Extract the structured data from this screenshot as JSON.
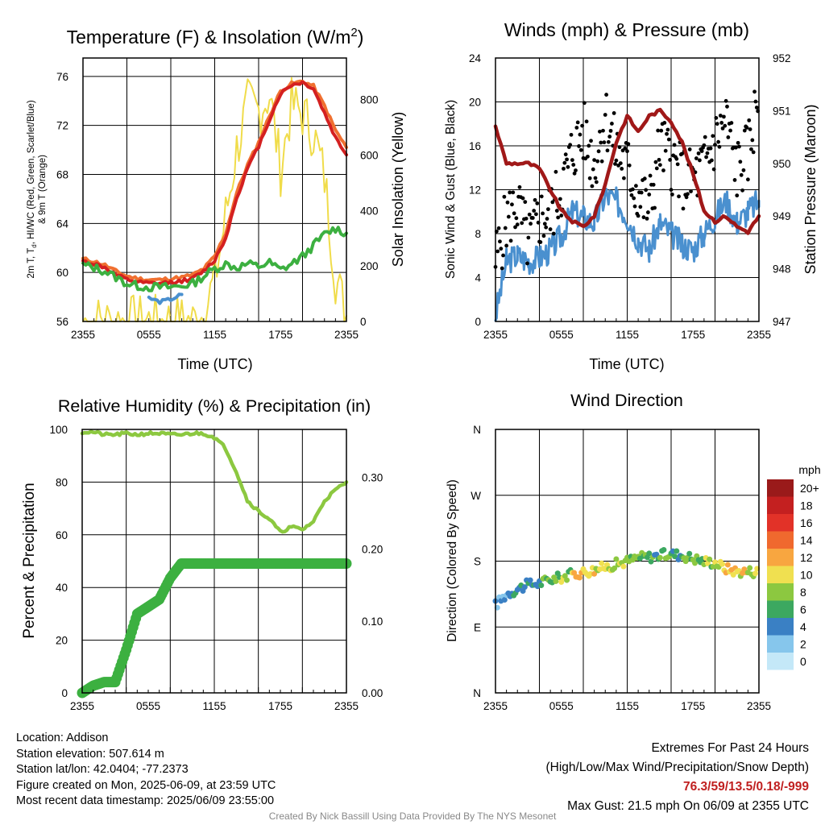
{
  "panels": {
    "temp": {
      "title": "Temperature (F) & Insolation (W/m",
      "title_sup": "2",
      "title_end": ")",
      "ylabel1": "2m T, T",
      "ylabel1_sub": "d",
      "ylabel1_rest": ", HI/WC (Red, Green, Scarlet/Blue)",
      "ylabel2": "& 9m T (Orange)",
      "y2label": "Solar Insolation (Yellow)",
      "xlabel": "Time (UTC)"
    },
    "wind": {
      "title": "Winds (mph) & Pressure (mb)",
      "ylabel": "Sonic Wind & Gust (Blue, Black)",
      "y2label": "Station Pressure (Maroon)",
      "xlabel": "Time (UTC)"
    },
    "rh": {
      "title": "Relative Humidity (%) & Precipitation (in)",
      "ylabel": "Percent & Precipitation"
    },
    "dir": {
      "title": "Wind Direction",
      "ylabel": "Direction (Colored By Speed)",
      "legend_title": "mph"
    }
  },
  "chart_data": [
    {
      "type": "line",
      "title": "Temperature (F) & Insolation (W/m2)",
      "xlabel": "Time (UTC)",
      "ylabel": "2m T, Td, HI/WC (Red, Green, Scarlet/Blue) & 9m T (Orange)",
      "y2label": "Solar Insolation (Yellow)",
      "x_ticks": [
        "2355",
        "0555",
        "1155",
        "1755",
        "2355"
      ],
      "ylim": [
        56,
        77.5
      ],
      "y_ticks": [
        56,
        60,
        64,
        68,
        72,
        76
      ],
      "y2lim": [
        0,
        950
      ],
      "y2_ticks": [
        0,
        200,
        400,
        600,
        800
      ],
      "x_hours": [
        0,
        1,
        2,
        3,
        4,
        5,
        6,
        7,
        8,
        9,
        10,
        11,
        12,
        13,
        14,
        15,
        16,
        17,
        18,
        19,
        20,
        21,
        22,
        23,
        24
      ],
      "series": [
        {
          "color": "#f07030",
          "values": [
            61.1,
            60.9,
            60.6,
            60.1,
            59.7,
            59.5,
            59.4,
            59.4,
            59.5,
            59.6,
            59.8,
            60.3,
            61.3,
            63.2,
            66.5,
            68.8,
            70.6,
            72.8,
            74.8,
            75.4,
            75.6,
            75.2,
            73.6,
            71.6,
            70.2
          ]
        },
        {
          "color": "#d42020",
          "values": [
            60.9,
            60.7,
            60.4,
            59.8,
            59.4,
            59.2,
            59.1,
            59.1,
            59.2,
            59.3,
            59.5,
            60.1,
            61.0,
            62.8,
            66.1,
            68.5,
            70.3,
            72.5,
            74.6,
            75.3,
            75.5,
            75.0,
            73.0,
            71.0,
            69.6
          ]
        },
        {
          "color": "#3cb040",
          "values": [
            60.6,
            60.4,
            60.1,
            59.6,
            59.1,
            58.9,
            58.8,
            58.8,
            58.8,
            58.9,
            59.1,
            59.7,
            60.3,
            60.7,
            60.4,
            60.7,
            60.5,
            60.8,
            60.2,
            60.7,
            61.3,
            62.2,
            63.1,
            63.6,
            63.2
          ]
        },
        {
          "color": "#4a90cf",
          "values": [
            null,
            null,
            null,
            null,
            59.4,
            null,
            57.9,
            57.6,
            57.8,
            58.2,
            null,
            null,
            null,
            null,
            null,
            null,
            null,
            null,
            null,
            null,
            null,
            null,
            null,
            null,
            null
          ]
        },
        {
          "color": "#f0dc4a",
          "values": [
            0,
            0,
            0,
            0,
            0,
            0,
            0,
            0,
            0,
            0,
            0,
            30,
            150,
            380,
            620,
            780,
            760,
            820,
            550,
            780,
            750,
            680,
            520,
            160,
            20
          ]
        }
      ]
    },
    {
      "type": "line",
      "title": "Winds (mph) & Pressure (mb)",
      "xlabel": "Time (UTC)",
      "ylabel": "Sonic Wind & Gust (Blue, Black)",
      "y2label": "Station Pressure (Maroon)",
      "x_ticks": [
        "2355",
        "0555",
        "1155",
        "1755",
        "2355"
      ],
      "ylim": [
        0,
        24
      ],
      "y_ticks": [
        0,
        4,
        8,
        12,
        16,
        20,
        24
      ],
      "y2lim": [
        947,
        952
      ],
      "y2_ticks": [
        947,
        948,
        949,
        950,
        951,
        952
      ],
      "x_hours": [
        0,
        1,
        2,
        3,
        4,
        5,
        6,
        7,
        8,
        9,
        10,
        11,
        12,
        13,
        14,
        15,
        16,
        17,
        18,
        19,
        20,
        21,
        22,
        23,
        24
      ],
      "series": [
        {
          "color": "#4a90cf",
          "values": [
            0.5,
            5.5,
            6.0,
            5.5,
            5.8,
            6.5,
            7.8,
            10.0,
            9.5,
            9.0,
            11.5,
            11.0,
            9.5,
            7.5,
            6.5,
            9.0,
            8.0,
            7.0,
            6.5,
            8.0,
            9.5,
            11.0,
            9.0,
            10.0,
            11.0
          ]
        },
        {
          "color": "#a01818",
          "values": [
            950.7,
            950.0,
            950.0,
            950.0,
            949.9,
            949.5,
            949.1,
            948.9,
            948.8,
            949.0,
            949.6,
            950.4,
            950.9,
            950.6,
            950.9,
            951.0,
            950.8,
            950.4,
            949.8,
            949.1,
            948.9,
            949.0,
            948.8,
            948.7,
            949.0
          ]
        }
      ],
      "gusts": [
        5.5,
        9.2,
        10.6,
        7.1,
        9.4,
        9.8,
        12.1,
        15.4,
        17.3,
        14.2,
        18.8,
        15.5,
        14.1,
        11.6,
        10.2,
        16.0,
        14.7,
        13.1,
        12.8,
        14.2,
        16.5,
        18.3,
        13.8,
        15.3,
        20.9
      ]
    },
    {
      "type": "line",
      "title": "Relative Humidity (%) & Precipitation (in)",
      "ylabel": "Percent & Precipitation",
      "x_ticks": [
        "2355",
        "0555",
        "1155",
        "1755",
        "2355"
      ],
      "ylim": [
        0,
        100
      ],
      "y_ticks": [
        0,
        20,
        40,
        60,
        80,
        100
      ],
      "y2lim": [
        0,
        0.3667
      ],
      "y2_ticks": [
        "0.00",
        "0.10",
        "0.20",
        "0.30"
      ],
      "x_hours": [
        0,
        1,
        2,
        3,
        4,
        5,
        6,
        7,
        8,
        9,
        10,
        11,
        12,
        13,
        14,
        15,
        16,
        17,
        18,
        19,
        20,
        21,
        22,
        23,
        24
      ],
      "series": [
        {
          "color": "#8cc840",
          "values": [
            99,
            99,
            98,
            98,
            98.5,
            98,
            98.5,
            98.5,
            98,
            98,
            98.5,
            98.5,
            97,
            93,
            84,
            73,
            69,
            66,
            61,
            63,
            62,
            65,
            73,
            77,
            80
          ]
        },
        {
          "color": "#3cb040",
          "values": [
            0,
            0.01,
            0.015,
            0.015,
            0.06,
            0.11,
            0.12,
            0.13,
            0.16,
            0.18,
            0.18,
            0.18,
            0.18,
            0.18,
            0.18,
            0.18,
            0.18,
            0.18,
            0.18,
            0.18,
            0.18,
            0.18,
            0.18,
            0.18,
            0.18
          ]
        }
      ]
    },
    {
      "type": "scatter",
      "title": "Wind Direction",
      "ylabel": "Direction (Colored By Speed)",
      "x_ticks": [
        "2355",
        "0555",
        "1155",
        "1755",
        "2355"
      ],
      "y_ticks": [
        "N",
        "E",
        "S",
        "W",
        "N"
      ],
      "ylim": [
        0,
        360
      ],
      "legend_title": "mph",
      "legend": [
        {
          "label": "20+",
          "color": "#9a1a1a"
        },
        {
          "label": "18",
          "color": "#c42020"
        },
        {
          "label": "16",
          "color": "#e23228"
        },
        {
          "label": "14",
          "color": "#f0692e"
        },
        {
          "label": "12",
          "color": "#f8a640"
        },
        {
          "label": "10",
          "color": "#f0e050"
        },
        {
          "label": "8",
          "color": "#8cc840"
        },
        {
          "label": "6",
          "color": "#3ca860"
        },
        {
          "label": "4",
          "color": "#3a80c4"
        },
        {
          "label": "2",
          "color": "#86c6ec"
        },
        {
          "label": "0",
          "color": "#c4e8f8"
        }
      ],
      "x_hours": [
        0,
        1,
        2,
        3,
        4,
        5,
        6,
        7,
        8,
        9,
        10,
        11,
        12,
        13,
        14,
        15,
        16,
        17,
        18,
        19,
        20,
        21,
        22,
        23,
        24
      ],
      "directions": [
        120,
        135,
        142,
        148,
        150,
        155,
        158,
        162,
        165,
        168,
        172,
        176,
        180,
        185,
        186,
        188,
        190,
        188,
        184,
        180,
        178,
        170,
        166,
        166,
        166
      ]
    }
  ],
  "footer": {
    "location": "Location: Addison",
    "elevation": "Station elevation: 507.614 m",
    "latlon": "Station lat/lon: 42.0404; -77.2373",
    "created": "Figure created on Mon, 2025-06-09, at 23:59 UTC",
    "recent": "Most recent data timestamp: 2025/06/09 23:55:00",
    "extremes_title": "Extremes For Past 24 Hours",
    "extremes_sub": "(High/Low/Max Wind/Precipitation/Snow Depth)",
    "extremes_values": "76.3/59/13.5/0.18/-999",
    "max_gust": "Max Gust: 21.5 mph On 06/09 at 2355 UTC",
    "credit": "Created By Nick Bassill Using Data Provided By The NYS Mesonet"
  }
}
